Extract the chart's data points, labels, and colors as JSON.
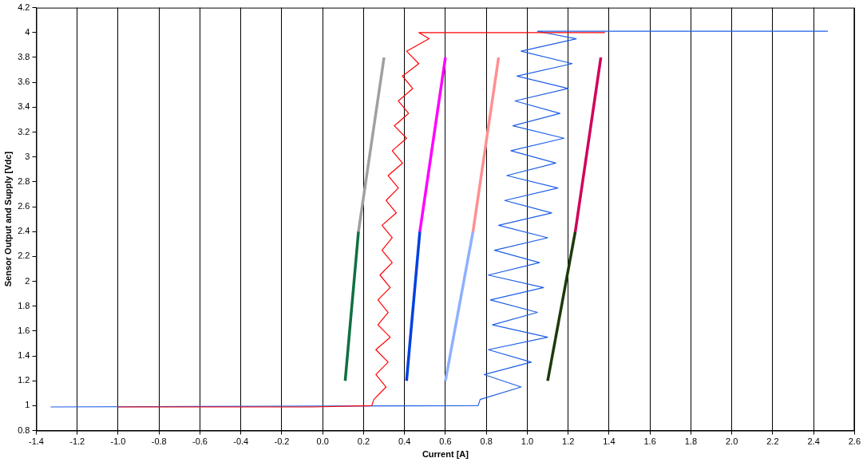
{
  "chart_data": {
    "type": "line",
    "xlabel": "Current [A]",
    "ylabel": "Sensor Output and Supply [Vdc]",
    "marker": "none",
    "grid": "x",
    "legend": false,
    "xlim": [
      -1.4,
      2.6
    ],
    "xticks": [
      -1.4,
      -1.2,
      {
        "value": -1,
        "label": "-1.0"
      },
      -0.8,
      -0.6,
      -0.4,
      -0.2,
      {
        "value": 0,
        "label": "0.0"
      },
      0.2,
      0.4,
      0.6,
      0.8,
      {
        "value": 1,
        "label": "1.0"
      },
      1.2,
      1.4,
      1.6,
      1.8,
      {
        "value": 2,
        "label": "2.0"
      },
      2.2,
      2.4,
      2.6
    ],
    "ylim": [
      0.8,
      4.2
    ],
    "yticks": [
      0.8,
      1,
      1.2,
      1.4,
      1.6,
      1.8,
      2,
      2.2,
      2.4,
      2.6,
      2.8,
      3,
      3.2,
      3.4,
      3.6,
      3.8,
      4,
      4.2
    ],
    "series": [
      {
        "color": "#1e5fe6",
        "x": [
          -1.33,
          0.76,
          0.77,
          0.97,
          0.79,
          1.02,
          0.81,
          1.1,
          0.83,
          1.05,
          0.82,
          1.08,
          0.81,
          1.06,
          0.84,
          1.1,
          0.86,
          1.12,
          0.89,
          1.15,
          0.9,
          1.14,
          0.92,
          1.18,
          0.93,
          1.16,
          0.94,
          1.2,
          0.95,
          1.22,
          0.97,
          1.24,
          1.05,
          2.47
        ],
        "values": [
          0.99,
          1.0,
          1.05,
          1.15,
          1.25,
          1.35,
          1.45,
          1.55,
          1.65,
          1.75,
          1.85,
          1.95,
          2.05,
          2.15,
          2.25,
          2.35,
          2.45,
          2.55,
          2.65,
          2.75,
          2.85,
          2.95,
          3.05,
          3.15,
          3.25,
          3.35,
          3.45,
          3.55,
          3.65,
          3.75,
          3.85,
          3.95,
          4.01,
          4.01
        ]
      },
      {
        "color": "#ff0000",
        "x": [
          -1.0,
          -0.05,
          0.24,
          0.25,
          0.31,
          0.26,
          0.32,
          0.26,
          0.33,
          0.27,
          0.32,
          0.27,
          0.33,
          0.28,
          0.34,
          0.29,
          0.34,
          0.29,
          0.36,
          0.31,
          0.37,
          0.32,
          0.39,
          0.34,
          0.41,
          0.35,
          0.42,
          0.37,
          0.44,
          0.39,
          0.47,
          0.41,
          0.52,
          0.47,
          1.38
        ],
        "values": [
          0.99,
          0.99,
          1.0,
          1.05,
          1.15,
          1.25,
          1.35,
          1.45,
          1.55,
          1.65,
          1.75,
          1.85,
          1.95,
          2.05,
          2.15,
          2.25,
          2.35,
          2.45,
          2.55,
          2.65,
          2.75,
          2.85,
          2.95,
          3.05,
          3.15,
          3.25,
          3.35,
          3.45,
          3.55,
          3.65,
          3.75,
          3.85,
          3.95,
          4.0,
          4.0
        ]
      },
      {
        "color": "#0f7040",
        "x": [
          0.11,
          0.175
        ],
        "values": [
          1.2,
          2.4
        ]
      },
      {
        "color": "#a0a0a0",
        "x": [
          0.175,
          0.3
        ],
        "values": [
          2.4,
          3.8
        ]
      },
      {
        "color": "#0040e0",
        "x": [
          0.41,
          0.475
        ],
        "values": [
          1.2,
          2.4
        ]
      },
      {
        "color": "#ff00ff",
        "x": [
          0.475,
          0.6
        ],
        "values": [
          2.4,
          3.8
        ]
      },
      {
        "color": "#8fb0ff",
        "x": [
          0.6,
          0.735
        ],
        "values": [
          1.2,
          2.4
        ]
      },
      {
        "color": "#ff9090",
        "x": [
          0.735,
          0.86
        ],
        "values": [
          2.4,
          3.8
        ]
      },
      {
        "color": "#1e3a0a",
        "x": [
          1.1,
          1.235
        ],
        "values": [
          1.2,
          2.4
        ]
      },
      {
        "color": "#d0005a",
        "x": [
          1.235,
          1.36
        ],
        "values": [
          2.4,
          3.8
        ]
      }
    ]
  }
}
